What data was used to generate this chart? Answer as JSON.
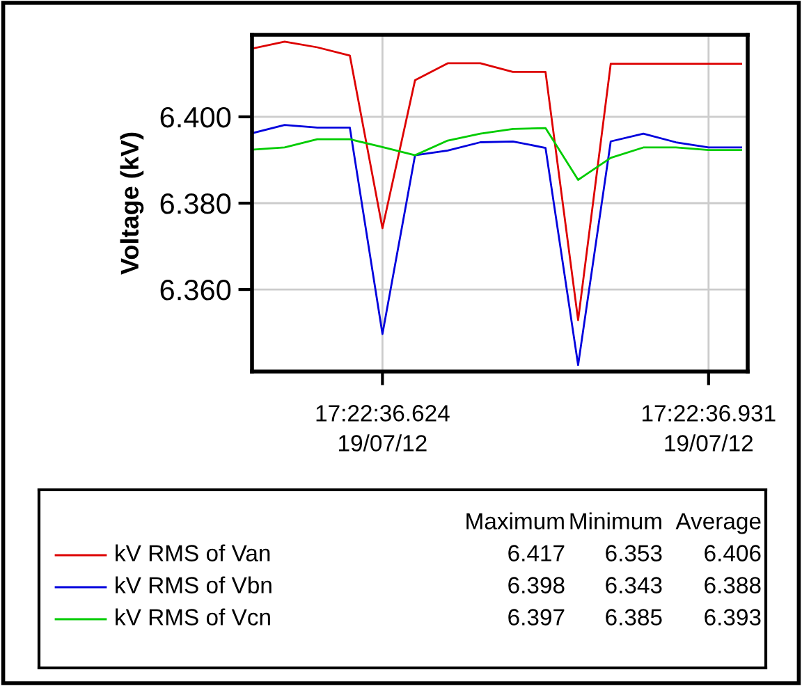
{
  "chart_data": {
    "type": "line",
    "ylabel": "Voltage (kV)",
    "categories": [
      null,
      null,
      null,
      null,
      "17:22:36.624\n19/07/12",
      null,
      null,
      null,
      null,
      null,
      null,
      null,
      null,
      null,
      "17:22:36.931\n19/07/12",
      null
    ],
    "series": [
      {
        "name": "kV RMS of Van",
        "color": "#dd0000",
        "values": [
          6.4158,
          6.4174,
          6.4161,
          6.4142,
          6.3742,
          6.4085,
          6.4124,
          6.4124,
          6.4104,
          6.4104,
          6.3529,
          6.4123,
          6.4123,
          6.4123,
          6.4123,
          6.4123
        ]
      },
      {
        "name": "kV RMS of Vbn",
        "color": "#0000dd",
        "values": [
          6.3962,
          6.3981,
          6.3975,
          6.3975,
          6.3497,
          6.3911,
          6.3922,
          6.3941,
          6.3943,
          6.3928,
          6.3425,
          6.3943,
          6.3961,
          6.3941,
          6.3929,
          6.3929
        ]
      },
      {
        "name": "kV RMS of Vcn",
        "color": "#00cc00",
        "values": [
          6.3924,
          6.3929,
          6.3948,
          6.3948,
          6.393,
          6.3911,
          6.3945,
          6.3961,
          6.3972,
          6.3974,
          6.3854,
          6.3905,
          6.3929,
          6.3929,
          6.3923,
          6.3923
        ]
      }
    ],
    "ylim": [
      6.341,
      6.419
    ],
    "yticks": [
      {
        "value": 6.36,
        "label": "6.360"
      },
      {
        "value": 6.38,
        "label": "6.380"
      },
      {
        "value": 6.4,
        "label": "6.400"
      }
    ],
    "grid": true,
    "legend": "bottom",
    "line_style": "solid",
    "marker": "none",
    "annotations": [
      "Maximum",
      "Minimum",
      "Average",
      "6.417",
      "6.353",
      "6.406",
      "6.398",
      "6.343",
      "6.388",
      "6.397",
      "6.385",
      "6.393"
    ]
  }
}
